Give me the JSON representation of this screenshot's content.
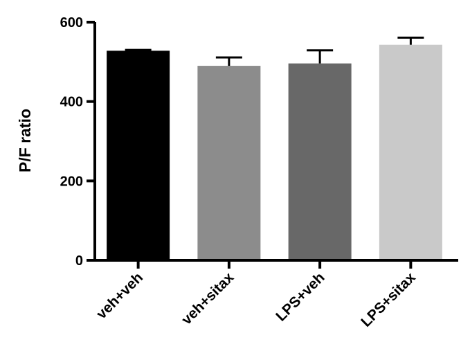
{
  "chart_data": {
    "type": "bar",
    "title": "",
    "xlabel": "",
    "ylabel": "P/F ratio",
    "ylim": [
      0,
      600
    ],
    "yticks": [
      0,
      200,
      400,
      600
    ],
    "grid": false,
    "categories": [
      "veh+veh",
      "veh+sitax",
      "LPS+veh",
      "LPS+sitax"
    ],
    "values": [
      528,
      490,
      496,
      543
    ],
    "errors": [
      2,
      21,
      33,
      18
    ],
    "colors": [
      "#000000",
      "#8c8c8c",
      "#686868",
      "#c9c9c9"
    ]
  }
}
